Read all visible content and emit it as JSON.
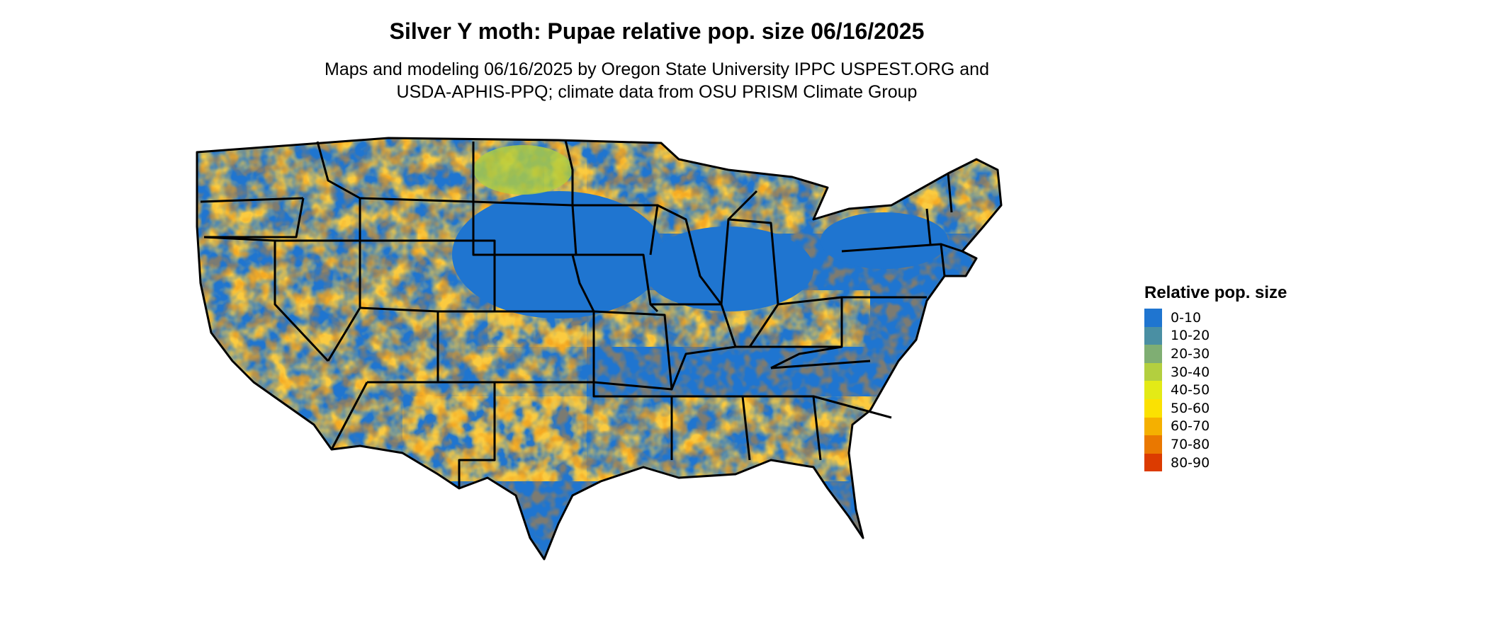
{
  "title": "Silver Y moth: Pupae relative pop. size 06/16/2025",
  "subtitle_line1": "Maps and modeling 06/16/2025 by Oregon State University IPPC USPEST.ORG and",
  "subtitle_line2": "USDA-APHIS-PPQ; climate data from OSU PRISM Climate Group",
  "legend": {
    "title": "Relative pop. size",
    "items": [
      {
        "label": "0-10",
        "color": "#1f75d0"
      },
      {
        "label": "10-20",
        "color": "#4a8fa3"
      },
      {
        "label": "20-30",
        "color": "#7fae73"
      },
      {
        "label": "30-40",
        "color": "#b3cf3f"
      },
      {
        "label": "40-50",
        "color": "#e3ea16"
      },
      {
        "label": "50-60",
        "color": "#fbe102"
      },
      {
        "label": "60-70",
        "color": "#f5b000"
      },
      {
        "label": "70-80",
        "color": "#ea7800"
      },
      {
        "label": "80-90",
        "color": "#dc3b00"
      }
    ]
  }
}
